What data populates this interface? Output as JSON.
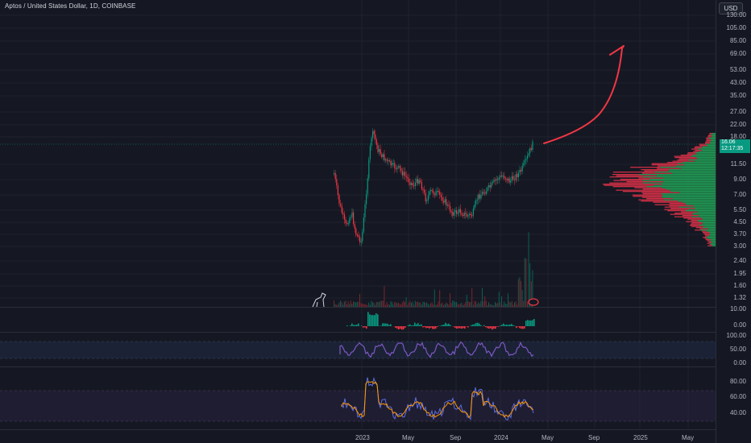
{
  "window": {
    "title": "Aptos / United States Dollar, 1D, COINBASE"
  },
  "price_axis": {
    "currency_button": "USD",
    "ticks": [
      "130.00",
      "105.00",
      "85.00",
      "69.00",
      "53.00",
      "43.00",
      "35.00",
      "27.00",
      "22.00",
      "18.00",
      "11.50",
      "9.00",
      "7.00",
      "5.50",
      "4.50",
      "3.70",
      "3.00",
      "2.40",
      "1.95",
      "1.60",
      "1.32"
    ],
    "last_price": "16.06",
    "countdown": "12:17:35"
  },
  "macd_axis": {
    "ticks": [
      "10.00",
      "0.00"
    ]
  },
  "rsi_axis": {
    "ticks": [
      "100.00",
      "50.00",
      "0.00"
    ]
  },
  "stoch_axis": {
    "ticks": [
      "80.00",
      "60.00",
      "40.00"
    ]
  },
  "time_axis": {
    "labels": [
      "2023",
      "May",
      "Sep",
      "2024",
      "May",
      "Sep",
      "2025",
      "May"
    ]
  },
  "colors": {
    "up": "#089981",
    "down": "#f23645",
    "volume_profile_up": "#22ab5a",
    "volume_profile_down": "#e8334a",
    "rsi_line": "#7e57c2",
    "drawing": "#f23645"
  }
}
